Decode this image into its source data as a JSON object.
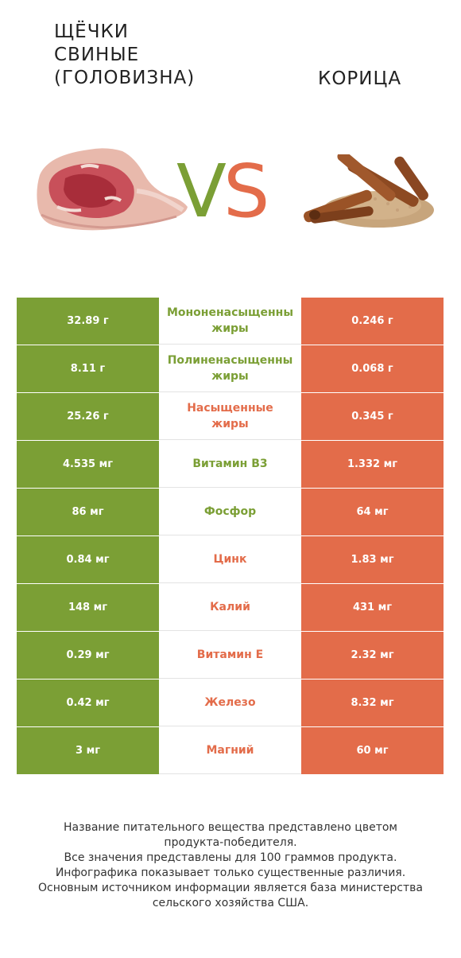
{
  "header": {
    "left_title_lines": [
      "ЩЁЧКИ",
      "СВИНЫЕ",
      "(ГОЛОВИЗНА)"
    ],
    "right_title": "КОРИЦА",
    "vs_v": "V",
    "vs_s": "S"
  },
  "colors": {
    "left": "#7b9f35",
    "right": "#e36c4a"
  },
  "rows": [
    {
      "left": "32.89 г",
      "name_lines": [
        "Мононенасыщенны",
        "жиры"
      ],
      "right": "0.246 г",
      "winner": "left"
    },
    {
      "left": "8.11 г",
      "name_lines": [
        "Полиненасыщенны",
        "жиры"
      ],
      "right": "0.068 г",
      "winner": "left"
    },
    {
      "left": "25.26 г",
      "name_lines": [
        "Насыщенные",
        "жиры"
      ],
      "right": "0.345 г",
      "winner": "right"
    },
    {
      "left": "4.535 мг",
      "name_lines": [
        "Витамин B3"
      ],
      "right": "1.332 мг",
      "winner": "left"
    },
    {
      "left": "86 мг",
      "name_lines": [
        "Фосфор"
      ],
      "right": "64 мг",
      "winner": "left"
    },
    {
      "left": "0.84 мг",
      "name_lines": [
        "Цинк"
      ],
      "right": "1.83 мг",
      "winner": "right"
    },
    {
      "left": "148 мг",
      "name_lines": [
        "Калий"
      ],
      "right": "431 мг",
      "winner": "right"
    },
    {
      "left": "0.29 мг",
      "name_lines": [
        "Витамин E"
      ],
      "right": "2.32 мг",
      "winner": "right"
    },
    {
      "left": "0.42 мг",
      "name_lines": [
        "Железо"
      ],
      "right": "8.32 мг",
      "winner": "right"
    },
    {
      "left": "3 мг",
      "name_lines": [
        "Магний"
      ],
      "right": "60 мг",
      "winner": "right"
    }
  ],
  "footer_lines": [
    "Название питательного вещества представлено цветом",
    "продукта-победителя.",
    "Все значения представлены для 100 граммов продукта.",
    "Инфографика показывает только существенные различия.",
    "Основным источником информации является база министерства",
    "сельского хозяйства США."
  ]
}
